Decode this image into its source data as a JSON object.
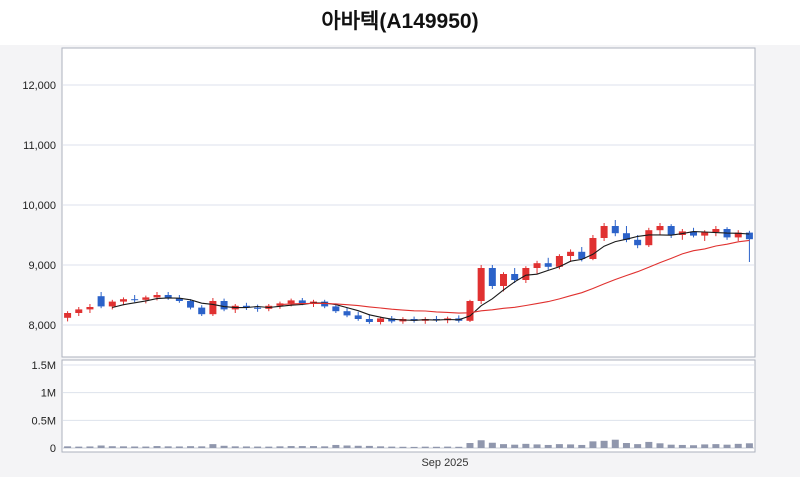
{
  "title": "아바텍(A149950)",
  "chart_data": {
    "type": "candlestick",
    "title": "아바텍(A149950)",
    "x_axis_label": "Sep 2025",
    "price_axis": {
      "ticks": [
        {
          "value": 12000,
          "label": "12,000"
        },
        {
          "value": 11000,
          "label": "11,000"
        },
        {
          "value": 10000,
          "label": "10,000"
        },
        {
          "value": 9000,
          "label": "9,000"
        },
        {
          "value": 8000,
          "label": "8,000"
        }
      ],
      "min": 7470,
      "max": 12620
    },
    "volume_axis": {
      "ticks": [
        {
          "value": 1500000,
          "label": "1.5M"
        },
        {
          "value": 1000000,
          "label": "1M"
        },
        {
          "value": 500000,
          "label": "0.5M"
        },
        {
          "value": 0,
          "label": "0"
        }
      ],
      "max": 1500000
    },
    "colors": {
      "up": "#e03131",
      "down": "#2b62c9",
      "volume": "#9097ad",
      "grid": "#dde2ec",
      "border": "#adb2bd",
      "background": "#f4f4f6",
      "plot_background": "#ffffff",
      "ma_short": "#1a1a1a",
      "ma_long": "#e0312f"
    },
    "moving_averages": [
      {
        "name": "short",
        "window": 5,
        "color": "#1a1a1a"
      },
      {
        "name": "long",
        "window": 20,
        "color": "#e0312f"
      }
    ],
    "series": {
      "candles": [
        [
          8120,
          8230,
          8060,
          8200
        ],
        [
          8200,
          8300,
          8150,
          8260
        ],
        [
          8260,
          8350,
          8200,
          8300
        ],
        [
          8480,
          8550,
          8280,
          8310
        ],
        [
          8310,
          8420,
          8260,
          8390
        ],
        [
          8390,
          8460,
          8330,
          8430
        ],
        [
          8430,
          8500,
          8380,
          8420
        ],
        [
          8420,
          8490,
          8360,
          8460
        ],
        [
          8460,
          8550,
          8410,
          8500
        ],
        [
          8500,
          8550,
          8420,
          8450
        ],
        [
          8450,
          8500,
          8370,
          8400
        ],
        [
          8400,
          8430,
          8260,
          8290
        ],
        [
          8290,
          8330,
          8150,
          8180
        ],
        [
          8180,
          8450,
          8150,
          8400
        ],
        [
          8400,
          8440,
          8230,
          8260
        ],
        [
          8260,
          8350,
          8200,
          8320
        ],
        [
          8320,
          8370,
          8250,
          8290
        ],
        [
          8290,
          8340,
          8220,
          8270
        ],
        [
          8270,
          8350,
          8230,
          8320
        ],
        [
          8320,
          8390,
          8270,
          8360
        ],
        [
          8360,
          8440,
          8310,
          8410
        ],
        [
          8410,
          8450,
          8330,
          8360
        ],
        [
          8360,
          8420,
          8300,
          8390
        ],
        [
          8390,
          8420,
          8280,
          8310
        ],
        [
          8310,
          8360,
          8200,
          8230
        ],
        [
          8230,
          8290,
          8130,
          8160
        ],
        [
          8160,
          8220,
          8070,
          8100
        ],
        [
          8100,
          8180,
          8020,
          8050
        ],
        [
          8050,
          8140,
          8010,
          8110
        ],
        [
          8110,
          8150,
          8030,
          8060
        ],
        [
          8060,
          8130,
          8020,
          8100
        ],
        [
          8100,
          8140,
          8040,
          8070
        ],
        [
          8070,
          8130,
          8020,
          8100
        ],
        [
          8100,
          8150,
          8050,
          8080
        ],
        [
          8080,
          8140,
          8030,
          8110
        ],
        [
          8110,
          8160,
          8040,
          8070
        ],
        [
          8070,
          8420,
          8050,
          8400
        ],
        [
          8400,
          9000,
          8350,
          8950
        ],
        [
          8950,
          9000,
          8600,
          8650
        ],
        [
          8650,
          8880,
          8560,
          8850
        ],
        [
          8850,
          8950,
          8700,
          8750
        ],
        [
          8750,
          8980,
          8700,
          8950
        ],
        [
          8950,
          9070,
          8850,
          9030
        ],
        [
          9030,
          9120,
          8920,
          8970
        ],
        [
          8970,
          9180,
          8930,
          9150
        ],
        [
          9150,
          9260,
          9050,
          9220
        ],
        [
          9220,
          9300,
          9060,
          9100
        ],
        [
          9100,
          9500,
          9080,
          9450
        ],
        [
          9450,
          9700,
          9400,
          9650
        ],
        [
          9650,
          9750,
          9480,
          9530
        ],
        [
          9530,
          9650,
          9380,
          9420
        ],
        [
          9420,
          9500,
          9280,
          9330
        ],
        [
          9330,
          9620,
          9300,
          9580
        ],
        [
          9580,
          9700,
          9500,
          9650
        ],
        [
          9650,
          9680,
          9450,
          9500
        ],
        [
          9500,
          9600,
          9420,
          9560
        ],
        [
          9560,
          9620,
          9460,
          9490
        ],
        [
          9490,
          9580,
          9400,
          9550
        ],
        [
          9550,
          9650,
          9480,
          9600
        ],
        [
          9600,
          9630,
          9420,
          9460
        ],
        [
          9460,
          9580,
          9400,
          9540
        ],
        [
          9540,
          9570,
          9050,
          9430
        ]
      ],
      "volumes": [
        30000,
        25000,
        28000,
        45000,
        32000,
        30000,
        27000,
        26000,
        35000,
        30000,
        28000,
        33000,
        30000,
        70000,
        40000,
        30000,
        28000,
        26000,
        25000,
        30000,
        35000,
        35000,
        35000,
        30000,
        55000,
        45000,
        40000,
        38000,
        30000,
        25000,
        22000,
        20000,
        24000,
        22000,
        25000,
        22000,
        90000,
        140000,
        95000,
        70000,
        60000,
        75000,
        65000,
        55000,
        70000,
        65000,
        55000,
        120000,
        130000,
        150000,
        90000,
        70000,
        110000,
        85000,
        60000,
        55000,
        50000,
        65000,
        70000,
        60000,
        75000,
        85000
      ]
    }
  }
}
